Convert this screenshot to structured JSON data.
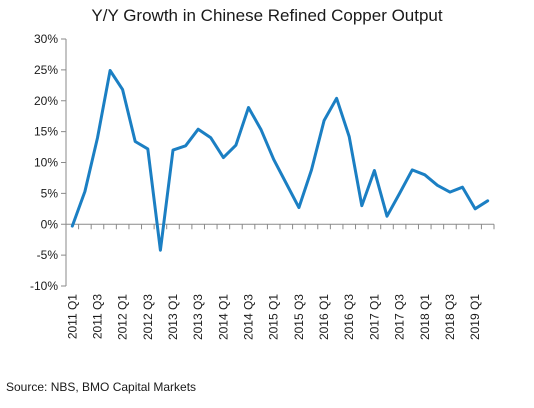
{
  "chart_data": {
    "type": "line",
    "title": "Y/Y Growth in Chinese Refined Copper Output",
    "xlabel": "",
    "ylabel": "",
    "ylim": [
      -10,
      30
    ],
    "y_ticks": [
      -10,
      -5,
      0,
      5,
      10,
      15,
      20,
      25,
      30
    ],
    "y_tick_labels": [
      "-10%",
      "-5%",
      "0%",
      "5%",
      "10%",
      "15%",
      "20%",
      "25%",
      "30%"
    ],
    "x": [
      "2011 Q1",
      "2011 Q2",
      "2011 Q3",
      "2011 Q4",
      "2012 Q1",
      "2012 Q2",
      "2012 Q3",
      "2012 Q4",
      "2013 Q1",
      "2013 Q2",
      "2013 Q3",
      "2013 Q4",
      "2014 Q1",
      "2014 Q2",
      "2014 Q3",
      "2014 Q4",
      "2015 Q1",
      "2015 Q2",
      "2015 Q3",
      "2015 Q4",
      "2016 Q1",
      "2016 Q2",
      "2016 Q3",
      "2016 Q4",
      "2017 Q1",
      "2017 Q2",
      "2017 Q3",
      "2017 Q4",
      "2018 Q1",
      "2018 Q2",
      "2018 Q3",
      "2018 Q4",
      "2019 Q1",
      "2019 Q2"
    ],
    "x_tick_labels": [
      "2011 Q1",
      "2011 Q3",
      "2012 Q1",
      "2012 Q3",
      "2013 Q1",
      "2013 Q3",
      "2014 Q1",
      "2014 Q3",
      "2015 Q1",
      "2015 Q3",
      "2016 Q1",
      "2016 Q3",
      "2017 Q1",
      "2017 Q3",
      "2018 Q1",
      "2018 Q3",
      "2019 Q1"
    ],
    "series": [
      {
        "values": [
          -0.3,
          5.3,
          14.0,
          24.9,
          21.8,
          13.4,
          12.2,
          -4.2,
          12.0,
          12.7,
          15.4,
          14.0,
          10.8,
          12.8,
          18.9,
          15.3,
          10.5,
          6.6,
          2.7,
          8.8,
          16.8,
          20.4,
          14.2,
          3.0,
          8.7,
          1.3,
          5.0,
          8.8,
          8.0,
          6.3,
          5.2,
          6.0,
          2.5,
          3.8
        ]
      }
    ],
    "line_color": "#1b7fc3",
    "grid": false
  },
  "source": "Source: NBS, BMO Capital Markets"
}
